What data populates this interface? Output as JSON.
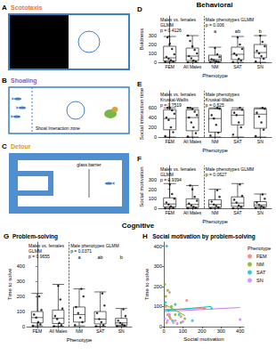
{
  "headers": {
    "behavioral": "Behavioral",
    "cognitive": "Cognitive"
  },
  "diagrams": [
    {
      "letter": "A",
      "title": "Scototaxis",
      "color": "#e07b39"
    },
    {
      "letter": "B",
      "title": "Shoaling",
      "color": "#8e5ea2",
      "labels": [
        "Shoal Interaction zone"
      ]
    },
    {
      "letter": "C",
      "title": "Detour",
      "color": "#d4a017",
      "labels": [
        "glass barrier"
      ]
    }
  ],
  "chart_data": [
    {
      "panel": "D",
      "type": "boxplot",
      "categories": [
        "FEM",
        "All Males",
        "NM",
        "SAT",
        "SN"
      ],
      "x_label": "Phenotype",
      "y_label": "Boldness",
      "ylim": [
        0,
        520
      ],
      "yticks": [
        0,
        100,
        200,
        300
      ],
      "grid": false,
      "boxes": [
        [
          0,
          15,
          50,
          180,
          290
        ],
        [
          0,
          20,
          70,
          160,
          300
        ],
        [
          0,
          10,
          30,
          80,
          170
        ],
        [
          0,
          30,
          90,
          170,
          290
        ],
        [
          0,
          50,
          110,
          200,
          300
        ]
      ],
      "points": [
        [
          5,
          10,
          25,
          40,
          60,
          90,
          150,
          210,
          280
        ],
        [
          0,
          8,
          20,
          45,
          70,
          100,
          140,
          180,
          240,
          300
        ],
        [
          0,
          5,
          12,
          25,
          35,
          60,
          90,
          160
        ],
        [
          2,
          20,
          40,
          80,
          100,
          150,
          200,
          280
        ],
        [
          10,
          40,
          70,
          100,
          130,
          180,
          230,
          300
        ]
      ],
      "annotations": [
        "Males vs. females\nGLMM\np = 0.4126",
        "Male phenotypes GLMM\np = 0.006"
      ],
      "letters": [
        null,
        null,
        "a",
        "ab",
        "b"
      ]
    },
    {
      "panel": "E",
      "type": "boxplot",
      "categories": [
        "FEM",
        "All Males",
        "NM",
        "SAT",
        "SN"
      ],
      "x_label": "Phenotype",
      "y_label": "Social interaction time",
      "ylim": [
        0,
        950
      ],
      "yticks": [
        0,
        200,
        400,
        600
      ],
      "grid": false,
      "boxes": [
        [
          0,
          150,
          380,
          560,
          600
        ],
        [
          0,
          130,
          400,
          560,
          600
        ],
        [
          0,
          100,
          380,
          580,
          600
        ],
        [
          0,
          250,
          450,
          560,
          600
        ],
        [
          0,
          180,
          470,
          580,
          600
        ]
      ],
      "points": [
        [
          20,
          100,
          200,
          350,
          400,
          480,
          550,
          600,
          600
        ],
        [
          10,
          80,
          200,
          300,
          400,
          450,
          520,
          580,
          600,
          600
        ],
        [
          30,
          90,
          250,
          380,
          450,
          580,
          600
        ],
        [
          50,
          200,
          300,
          450,
          500,
          560,
          600
        ],
        [
          20,
          150,
          300,
          420,
          500,
          580,
          600
        ]
      ],
      "annotations": [
        "Males vs. females\nKruskal-Wallis\np = 0.7519",
        "Male phenotypes\nKruskal-Wallis\np = 0.625"
      ]
    },
    {
      "panel": "F",
      "type": "boxplot",
      "categories": [
        "FEM",
        "All Males",
        "NM",
        "SAT",
        "SN"
      ],
      "x_label": "Phenotype",
      "y_label": "Social motivation",
      "ylim": [
        0,
        450
      ],
      "yticks": [
        0,
        100,
        200,
        300
      ],
      "grid": false,
      "boxes": [
        [
          0,
          15,
          45,
          110,
          260
        ],
        [
          0,
          10,
          40,
          100,
          240
        ],
        [
          0,
          10,
          40,
          90,
          200
        ],
        [
          0,
          20,
          55,
          120,
          260
        ],
        [
          0,
          15,
          35,
          70,
          150
        ]
      ],
      "points": [
        [
          0,
          5,
          20,
          40,
          60,
          100,
          150,
          250
        ],
        [
          0,
          5,
          15,
          30,
          50,
          80,
          120,
          200,
          240
        ],
        [
          0,
          10,
          25,
          40,
          70,
          120,
          190
        ],
        [
          0,
          15,
          30,
          60,
          90,
          130,
          250
        ],
        [
          0,
          10,
          20,
          35,
          60,
          100,
          145
        ]
      ],
      "annotations": [
        "Males vs. females\nGLMM\np = 0.9394",
        "Male phenotypes GLMM\np = 0.0627"
      ]
    },
    {
      "panel": "G",
      "title": "Problem-solving",
      "type": "boxplot",
      "categories": [
        "FEM",
        "All Males",
        "NM",
        "SAT",
        "SN"
      ],
      "x_label": "Phenotype",
      "y_label": "Time to solve",
      "ylim": [
        0,
        560
      ],
      "yticks": [
        0,
        100,
        200,
        300,
        400
      ],
      "grid": false,
      "boxes": [
        [
          5,
          25,
          60,
          100,
          220
        ],
        [
          3,
          20,
          55,
          110,
          280
        ],
        [
          5,
          30,
          80,
          130,
          250
        ],
        [
          3,
          18,
          50,
          100,
          230
        ],
        [
          3,
          10,
          25,
          55,
          120
        ]
      ],
      "points": [
        [
          5,
          15,
          30,
          60,
          80,
          110,
          200
        ],
        [
          3,
          10,
          25,
          50,
          70,
          120,
          180,
          270
        ],
        [
          10,
          30,
          60,
          90,
          130,
          200,
          250
        ],
        [
          3,
          10,
          30,
          50,
          90,
          140,
          220
        ],
        [
          3,
          8,
          15,
          25,
          40,
          70,
          115
        ]
      ],
      "annotations": [
        "Males vs. females\nGLMM\np = 0.9655",
        "Male phenotypes GLMM\np = 0.0371"
      ],
      "letters": [
        null,
        null,
        "a",
        "ab",
        "b"
      ]
    },
    {
      "panel": "H",
      "title": "Social motivation by problem-solving",
      "type": "scatter",
      "x_label": "Social motivation",
      "y_label": "Time to solve",
      "xlim": [
        0,
        420
      ],
      "xticks": [
        0,
        100,
        200,
        300,
        400
      ],
      "ylim": [
        0,
        420
      ],
      "yticks": [
        0,
        100,
        200,
        300,
        400
      ],
      "grid": false,
      "legend": "right",
      "legend_title": "Phenotype",
      "series": [
        {
          "name": "FEM",
          "color": "#F8766D",
          "values": [
            [
              10,
              100
            ],
            [
              20,
              60
            ],
            [
              35,
              40
            ],
            [
              60,
              30
            ],
            [
              90,
              50
            ],
            [
              120,
              130
            ],
            [
              215,
              90
            ],
            [
              30,
              170
            ],
            [
              15,
              20
            ]
          ],
          "fit": [
            [
              5,
              85
            ],
            [
              215,
              90
            ]
          ]
        },
        {
          "name": "NM",
          "color": "#7CAE00",
          "values": [
            [
              5,
              210
            ],
            [
              20,
              180
            ],
            [
              40,
              100
            ],
            [
              60,
              60
            ],
            [
              90,
              20
            ],
            [
              10,
              150
            ],
            [
              30,
              50
            ],
            [
              110,
              40
            ]
          ],
          "fit": [
            [
              5,
              110
            ],
            [
              110,
              55
            ]
          ]
        },
        {
          "name": "SAT",
          "color": "#00BFC4",
          "values": [
            [
              8,
              120
            ],
            [
              25,
              80
            ],
            [
              45,
              30
            ],
            [
              80,
              60
            ],
            [
              150,
              30
            ],
            [
              250,
              90
            ],
            [
              15,
              400
            ],
            [
              60,
              110
            ]
          ],
          "fit": [
            [
              5,
              80
            ],
            [
              250,
              100
            ]
          ]
        },
        {
          "name": "SN",
          "color": "#C77CFF",
          "values": [
            [
              5,
              40
            ],
            [
              20,
              30
            ],
            [
              50,
              20
            ],
            [
              100,
              25
            ],
            [
              400,
              35
            ],
            [
              30,
              60
            ],
            [
              70,
              15
            ]
          ],
          "fit": [
            [
              5,
              75
            ],
            [
              400,
              95
            ]
          ]
        }
      ]
    }
  ]
}
